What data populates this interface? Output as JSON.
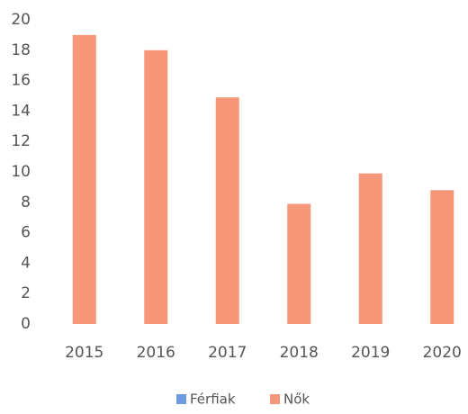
{
  "chart_data": {
    "type": "bar",
    "categories": [
      "2015",
      "2016",
      "2017",
      "2018",
      "2019",
      "2020"
    ],
    "series": [
      {
        "name": "Férfiak",
        "color": "#6e9be0",
        "values": [
          null,
          null,
          null,
          null,
          null,
          null
        ]
      },
      {
        "name": "Nők",
        "color": "#f7977a",
        "values": [
          19,
          18,
          14.9,
          7.9,
          9.9,
          8.8
        ]
      }
    ],
    "ylim": [
      0,
      20
    ],
    "yticks": [
      0,
      2,
      4,
      6,
      8,
      10,
      12,
      14,
      16,
      18,
      20
    ],
    "grid": false
  }
}
